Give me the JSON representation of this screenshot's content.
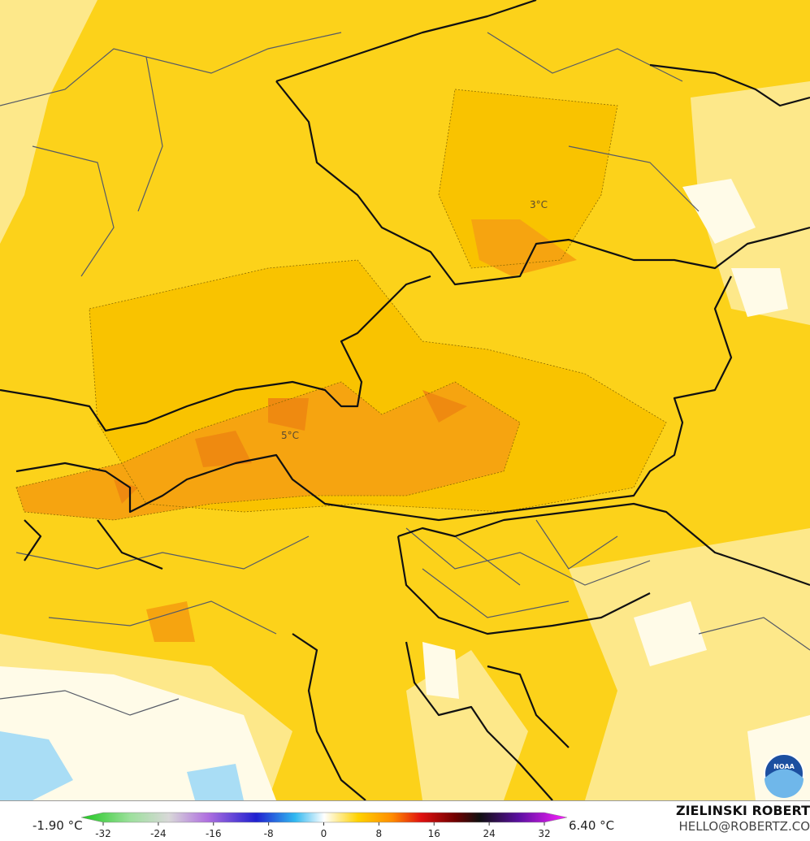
{
  "map": {
    "contour_labels": [
      "3°C",
      "5°C"
    ],
    "colorbar": {
      "min_label": "-1.90 °C",
      "max_label": "6.40 °C",
      "ticks": [
        -32,
        -24,
        -16,
        -8,
        0,
        8,
        16,
        24,
        32
      ]
    },
    "credit": {
      "name": "ZIELINSKI ROBERT",
      "email": "HELLO@ROBERTZ.CO"
    },
    "logo": "NOAA"
  }
}
